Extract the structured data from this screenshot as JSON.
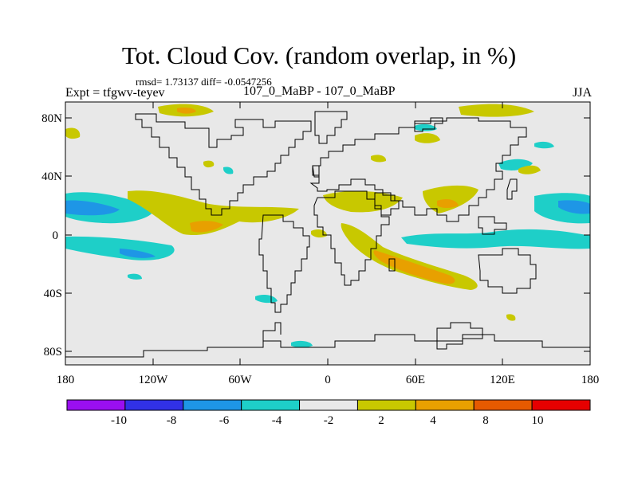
{
  "header": {
    "title": "Tot. Cloud Cov. (random overlap, in %)",
    "stats": "rmsd= 1.73137 diff= -0.0547256",
    "experiment": "Expt = tfgwv-teyev",
    "comparison": "107_0_MaBP - 107_0_MaBP",
    "season": "JJA"
  },
  "axes": {
    "lat_ticks": [
      "80N",
      "40N",
      "0",
      "40S",
      "80S"
    ],
    "lon_ticks": [
      "180",
      "120W",
      "60W",
      "0",
      "60E",
      "120E",
      "180"
    ]
  },
  "colorbar": {
    "colors": [
      "#9a0ff0",
      "#3131e6",
      "#1e96e6",
      "#1ecfc8",
      "#e8e8e8",
      "#c8c800",
      "#e8a000",
      "#e65a00",
      "#e60000"
    ],
    "labels": [
      "-10",
      "-8",
      "-6",
      "-4",
      "-2",
      "2",
      "4",
      "8",
      "10"
    ]
  },
  "colors": {
    "background_field": "#e8e8e8",
    "frame": "#000000"
  }
}
